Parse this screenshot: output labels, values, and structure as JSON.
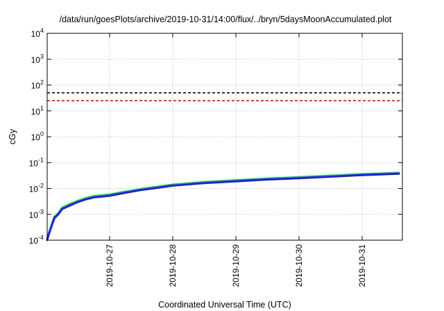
{
  "chart_data": {
    "type": "line",
    "title": "/data/run/goesPlots/archive/2019-10-31/14:00/flux/../bryn/5daysMoonAccumulated.plot",
    "xlabel": "Coordinated Universal Time (UTC)",
    "ylabel": "cGy",
    "y_scale": "log",
    "ylim": [
      0.0001,
      10000
    ],
    "y_ticks": [
      {
        "value": 0.0001,
        "base": "10",
        "exp": "-4"
      },
      {
        "value": 0.001,
        "base": "10",
        "exp": "-3"
      },
      {
        "value": 0.01,
        "base": "10",
        "exp": "-2"
      },
      {
        "value": 0.1,
        "base": "10",
        "exp": "-1"
      },
      {
        "value": 1,
        "base": "10",
        "exp": "0"
      },
      {
        "value": 10,
        "base": "10",
        "exp": "1"
      },
      {
        "value": 100,
        "base": "10",
        "exp": "2"
      },
      {
        "value": 1000,
        "base": "10",
        "exp": "3"
      },
      {
        "value": 10000,
        "base": "10",
        "exp": "4"
      }
    ],
    "xlim": [
      "2019-10-26T00:00",
      "2019-10-31T14:00"
    ],
    "x_ticks": [
      "2019-10-27",
      "2019-10-28",
      "2019-10-29",
      "2019-10-30",
      "2019-10-31"
    ],
    "grid": true,
    "reference_lines": [
      {
        "value": 50,
        "color": "#000000",
        "style": "dashed"
      },
      {
        "value": 25,
        "color": "#ff0000",
        "style": "dashed"
      }
    ],
    "series": [
      {
        "color": "#22bb22",
        "x": [
          "2019-10-26T00:00",
          "2019-10-26T01:00",
          "2019-10-26T02:00",
          "2019-10-26T03:00",
          "2019-10-26T04:30",
          "2019-10-26T06:00",
          "2019-10-26T09:00",
          "2019-10-26T12:00",
          "2019-10-26T15:00",
          "2019-10-26T18:00",
          "2019-10-27T00:00",
          "2019-10-27T06:00",
          "2019-10-27T12:00",
          "2019-10-27T18:00",
          "2019-10-28T00:00",
          "2019-10-28T12:00",
          "2019-10-29T00:00",
          "2019-10-29T12:00",
          "2019-10-30T00:00",
          "2019-10-30T12:00",
          "2019-10-31T00:00",
          "2019-10-31T14:00"
        ],
        "values": [
          0.00011,
          0.0002,
          0.0004,
          0.0008,
          0.0011,
          0.0018,
          0.0025,
          0.0033,
          0.0042,
          0.005,
          0.0058,
          0.0075,
          0.0095,
          0.0115,
          0.014,
          0.0175,
          0.0205,
          0.024,
          0.027,
          0.031,
          0.0355,
          0.04
        ]
      },
      {
        "color": "#1a1aff",
        "x": [
          "2019-10-26T00:00",
          "2019-10-26T01:00",
          "2019-10-26T02:00",
          "2019-10-26T03:00",
          "2019-10-26T04:30",
          "2019-10-26T06:00",
          "2019-10-26T09:00",
          "2019-10-26T12:00",
          "2019-10-26T15:00",
          "2019-10-26T18:00",
          "2019-10-27T00:00",
          "2019-10-27T06:00",
          "2019-10-27T12:00",
          "2019-10-27T18:00",
          "2019-10-28T00:00",
          "2019-10-28T12:00",
          "2019-10-29T00:00",
          "2019-10-29T12:00",
          "2019-10-30T00:00",
          "2019-10-30T12:00",
          "2019-10-31T00:00",
          "2019-10-31T14:00"
        ],
        "values": [
          0.0001,
          0.00018,
          0.00036,
          0.0007,
          0.001,
          0.0016,
          0.0022,
          0.003,
          0.0038,
          0.0045,
          0.0052,
          0.0068,
          0.0087,
          0.0105,
          0.0128,
          0.016,
          0.0188,
          0.022,
          0.0248,
          0.0285,
          0.0328,
          0.037
        ]
      }
    ]
  }
}
